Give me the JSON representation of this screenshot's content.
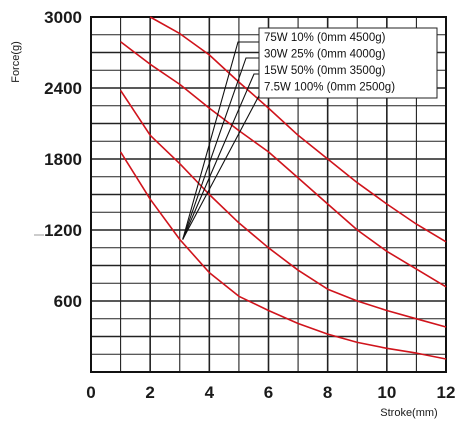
{
  "chart_data": {
    "type": "line",
    "title": "",
    "xlabel": "Stroke(mm)",
    "ylabel": "Force(g)",
    "xlim": [
      0,
      12
    ],
    "ylim": [
      0,
      3000
    ],
    "x_ticks": [
      "0",
      "2",
      "4",
      "6",
      "8",
      "10",
      "12"
    ],
    "y_ticks": [
      "600",
      "1200",
      "1800",
      "2400",
      "3000"
    ],
    "grid": true,
    "legend_position": "top-right",
    "series": [
      {
        "name": "75W 10% (0mm 4500g)",
        "color": "#d0141c",
        "points": [
          [
            2,
            3000
          ],
          [
            3,
            2860
          ],
          [
            4,
            2680
          ],
          [
            5,
            2450
          ],
          [
            6,
            2230
          ],
          [
            7,
            2000
          ],
          [
            8,
            1800
          ],
          [
            9,
            1600
          ],
          [
            10,
            1420
          ],
          [
            11,
            1250
          ],
          [
            12,
            1100
          ]
        ]
      },
      {
        "name": "30W 25% (0mm 4000g)",
        "color": "#d0141c",
        "points": [
          [
            1,
            2790
          ],
          [
            2,
            2600
          ],
          [
            3,
            2430
          ],
          [
            4,
            2230
          ],
          [
            5,
            2040
          ],
          [
            6,
            1860
          ],
          [
            7,
            1640
          ],
          [
            8,
            1420
          ],
          [
            9,
            1200
          ],
          [
            10,
            1020
          ],
          [
            11,
            870
          ],
          [
            12,
            720
          ]
        ]
      },
      {
        "name": "15W 50% (0mm 3500g)",
        "color": "#d0141c",
        "points": [
          [
            1,
            2380
          ],
          [
            2,
            2000
          ],
          [
            3,
            1760
          ],
          [
            4,
            1500
          ],
          [
            5,
            1260
          ],
          [
            6,
            1050
          ],
          [
            7,
            860
          ],
          [
            8,
            700
          ],
          [
            9,
            600
          ],
          [
            10,
            520
          ],
          [
            11,
            450
          ],
          [
            12,
            380
          ]
        ]
      },
      {
        "name": "7.5W 100% (0mm 2500g)",
        "color": "#d0141c",
        "points": [
          [
            1,
            1860
          ],
          [
            2,
            1460
          ],
          [
            3,
            1120
          ],
          [
            4,
            840
          ],
          [
            5,
            640
          ],
          [
            6,
            520
          ],
          [
            7,
            410
          ],
          [
            8,
            320
          ],
          [
            9,
            250
          ],
          [
            10,
            200
          ],
          [
            11,
            160
          ],
          [
            12,
            110
          ]
        ]
      }
    ]
  }
}
